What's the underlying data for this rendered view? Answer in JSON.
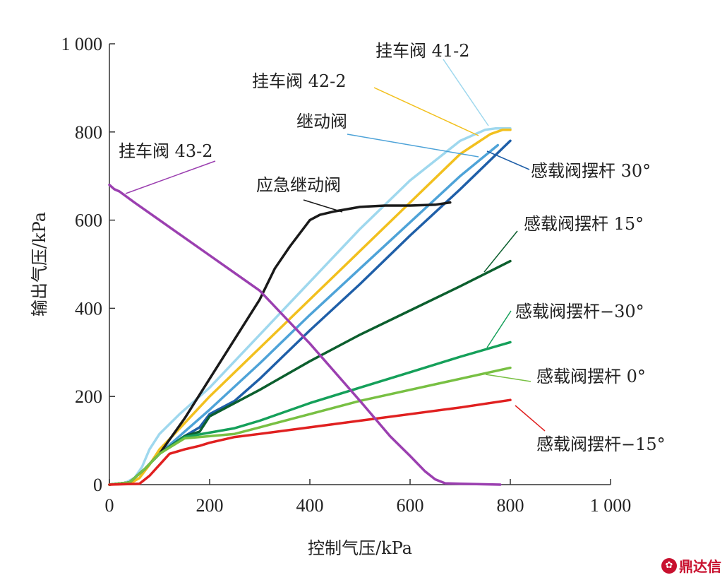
{
  "chart_data": {
    "type": "line",
    "xlabel": "控制气压/kPa",
    "ylabel": "输出气压/kPa",
    "xlim": [
      0,
      1000
    ],
    "ylim": [
      0,
      1000
    ],
    "xticks": [
      0,
      200,
      400,
      600,
      800,
      1000
    ],
    "yticks": [
      0,
      200,
      400,
      600,
      800,
      1000
    ],
    "xtick_labels": [
      "0",
      "200",
      "400",
      "600",
      "800",
      "1 000"
    ],
    "ytick_labels": [
      "0",
      "200",
      "400",
      "600",
      "800",
      "1 000"
    ],
    "grid": false,
    "series": [
      {
        "name": "挂车阀 41-2",
        "color": "#9fd8ee",
        "x": [
          0,
          30,
          50,
          65,
          80,
          100,
          140,
          200,
          300,
          400,
          500,
          600,
          700,
          750,
          770,
          800
        ],
        "y": [
          0,
          3,
          15,
          40,
          80,
          115,
          160,
          220,
          340,
          460,
          580,
          690,
          780,
          805,
          808,
          808
        ]
      },
      {
        "name": "挂车阀 42-2",
        "color": "#f2c01e",
        "x": [
          0,
          40,
          60,
          80,
          100,
          130,
          200,
          300,
          400,
          500,
          600,
          700,
          760,
          785,
          800
        ],
        "y": [
          0,
          2,
          15,
          45,
          80,
          115,
          200,
          310,
          420,
          530,
          640,
          750,
          795,
          805,
          805
        ]
      },
      {
        "name": "继动阀",
        "color": "#4ea3d8",
        "x": [
          0,
          40,
          70,
          100,
          150,
          200,
          300,
          400,
          500,
          600,
          700,
          775
        ],
        "y": [
          0,
          5,
          35,
          70,
          120,
          170,
          275,
          385,
          490,
          595,
          700,
          770
        ]
      },
      {
        "name": "感载阀摆杆 30°",
        "color": "#1f5fa8",
        "x": [
          0,
          40,
          70,
          100,
          150,
          180,
          200,
          250,
          300,
          400,
          500,
          600,
          700,
          800
        ],
        "y": [
          0,
          5,
          35,
          70,
          110,
          130,
          160,
          190,
          240,
          350,
          455,
          565,
          670,
          780
        ]
      },
      {
        "name": "应急继动阀",
        "color": "#1a1a1a",
        "x": [
          0,
          40,
          70,
          100,
          150,
          200,
          250,
          300,
          330,
          360,
          400,
          420,
          450,
          500,
          550,
          600,
          650,
          680
        ],
        "y": [
          0,
          5,
          35,
          70,
          150,
          240,
          330,
          420,
          490,
          540,
          600,
          612,
          620,
          630,
          633,
          633,
          635,
          640
        ]
      },
      {
        "name": "感载阀摆杆 15°",
        "color": "#0c5f2e",
        "x": [
          0,
          40,
          70,
          100,
          150,
          180,
          200,
          300,
          400,
          500,
          600,
          700,
          800
        ],
        "y": [
          0,
          5,
          35,
          70,
          110,
          120,
          155,
          215,
          280,
          340,
          395,
          450,
          507
        ]
      },
      {
        "name": "感载阀摆杆−30°",
        "color": "#15a05a",
        "x": [
          0,
          40,
          70,
          100,
          150,
          200,
          250,
          300,
          400,
          500,
          600,
          700,
          800
        ],
        "y": [
          0,
          5,
          35,
          70,
          108,
          118,
          128,
          145,
          185,
          220,
          255,
          290,
          323
        ]
      },
      {
        "name": "感载阀摆杆 0°",
        "color": "#78c043",
        "x": [
          0,
          40,
          70,
          100,
          150,
          200,
          250,
          300,
          400,
          500,
          600,
          700,
          800
        ],
        "y": [
          0,
          5,
          35,
          70,
          105,
          110,
          115,
          130,
          160,
          190,
          215,
          240,
          265
        ]
      },
      {
        "name": "感载阀摆杆−15°",
        "color": "#e02020",
        "x": [
          0,
          60,
          80,
          100,
          120,
          150,
          180,
          200,
          250,
          300,
          400,
          500,
          600,
          700,
          800
        ],
        "y": [
          0,
          2,
          20,
          45,
          70,
          80,
          88,
          95,
          108,
          115,
          130,
          145,
          160,
          175,
          192
        ]
      },
      {
        "name": "挂车阀 43-2",
        "color": "#9b3fb0",
        "x": [
          0,
          10,
          20,
          50,
          100,
          200,
          300,
          400,
          500,
          560,
          600,
          630,
          650,
          670,
          700,
          780
        ],
        "y": [
          680,
          670,
          665,
          640,
          600,
          520,
          440,
          320,
          190,
          110,
          65,
          30,
          12,
          3,
          2,
          0
        ]
      }
    ],
    "annotations": [
      {
        "text": "挂车阀 41-2",
        "series": "挂车阀 41-2"
      },
      {
        "text": "挂车阀 42-2",
        "series": "挂车阀 42-2"
      },
      {
        "text": "继动阀",
        "series": "继动阀"
      },
      {
        "text": "感载阀摆杆 30°",
        "series": "感载阀摆杆 30°"
      },
      {
        "text": "应急继动阀",
        "series": "应急继动阀"
      },
      {
        "text": "感载阀摆杆 15°",
        "series": "感载阀摆杆 15°"
      },
      {
        "text": "感载阀摆杆−30°",
        "series": "感载阀摆杆−30°"
      },
      {
        "text": "感载阀摆杆 0°",
        "series": "感载阀摆杆 0°"
      },
      {
        "text": "感载阀摆杆−15°",
        "series": "感载阀摆杆−15°"
      },
      {
        "text": "挂车阀 43-2",
        "series": "挂车阀 43-2"
      }
    ]
  },
  "watermark": {
    "text": "鼎达信",
    "icon": "logo-icon",
    "color": "#c8102e"
  }
}
